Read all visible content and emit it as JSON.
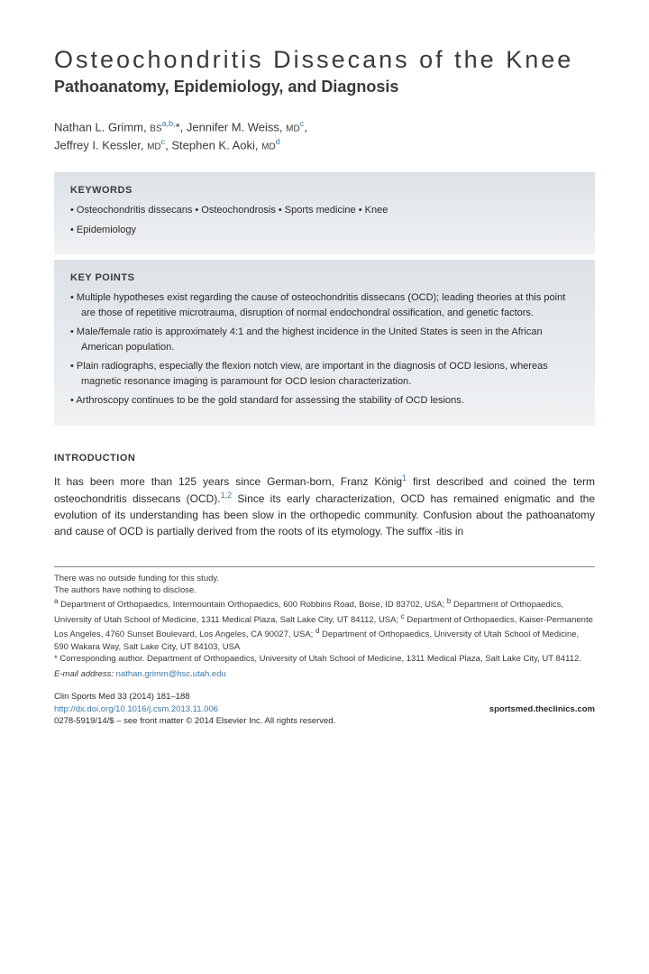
{
  "title": "Osteochondritis Dissecans of the Knee",
  "subtitle": "Pathoanatomy, Epidemiology, and Diagnosis",
  "authors_html": "Nathan L. Grimm, <span class='deg'>BS</span><span class='aff'>a,b,</span>*, Jennifer M. Weiss, <span class='deg'>MD</span><span class='aff'>c</span>,<br>Jeffrey I. Kessler, <span class='deg'>MD</span><span class='aff'>c</span>, Stephen K. Aoki, <span class='deg'>MD</span><span class='aff'>d</span>",
  "keywords_heading": "KEYWORDS",
  "keywords": [
    "Osteochondritis dissecans • Osteochondrosis • Sports medicine • Knee",
    "Epidemiology"
  ],
  "keypoints_heading": "KEY POINTS",
  "keypoints": [
    "Multiple hypotheses exist regarding the cause of osteochondritis dissecans (OCD); leading theories at this point are those of repetitive microtrauma, disruption of normal endochondral ossification, and genetic factors.",
    "Male/female ratio is approximately 4:1 and the highest incidence in the United States is seen in the African American population.",
    "Plain radiographs, especially the flexion notch view, are important in the diagnosis of OCD lesions, whereas magnetic resonance imaging is paramount for OCD lesion characterization.",
    "Arthroscopy continues to be the gold standard for assessing the stability of OCD lesions."
  ],
  "intro_heading": "INTRODUCTION",
  "intro_text": "It has been more than 125 years since German-born, Franz König<sup>1</sup> first described and coined the term osteochondritis dissecans (OCD).<sup>1,2</sup> Since its early characterization, OCD has remained enigmatic and the evolution of its understanding has been slow in the orthopedic community. Confusion about the pathoanatomy and cause of OCD is partially derived from the roots of its etymology. The suffix -itis in",
  "footnotes": {
    "funding": "There was no outside funding for this study.",
    "disclosure": "The authors have nothing to disclose.",
    "affiliations": "<span class='aff-label'>a</span> Department of Orthopaedics, Intermountain Orthopaedics, 600 Robbins Road, Boise, ID 83702, USA; <span class='aff-label'>b</span> Department of Orthopaedics, University of Utah School of Medicine, 1311 Medical Plaza, Salt Lake City, UT 84112, USA; <span class='aff-label'>c</span> Department of Orthopaedics, Kaiser-Permanente Los Angeles, 4760 Sunset Boulevard, Los Angeles, CA 90027, USA; <span class='aff-label'>d</span> Department of Orthopaedics, University of Utah School of Medicine, 590 Wakara Way, Salt Lake City, UT 84103, USA",
    "corresponding": "* Corresponding author. Department of Orthopaedics, University of Utah School of Medicine, 1311 Medical Plaza, Salt Lake City, UT 84112.",
    "email_label": "E-mail address:",
    "email": "nathan.grimm@hsc.utah.edu"
  },
  "journal": {
    "citation": "Clin Sports Med 33 (2014) 181–188",
    "doi": "http://dx.doi.org/10.1016/j.csm.2013.11.006",
    "site": "sportsmed.theclinics.com",
    "copyright": "0278-5919/14/$ – see front matter © 2014 Elsevier Inc. All rights reserved."
  },
  "colors": {
    "link": "#3a7aaa",
    "box_top": "#dde2e6",
    "box_bottom": "#f0f2f4"
  }
}
